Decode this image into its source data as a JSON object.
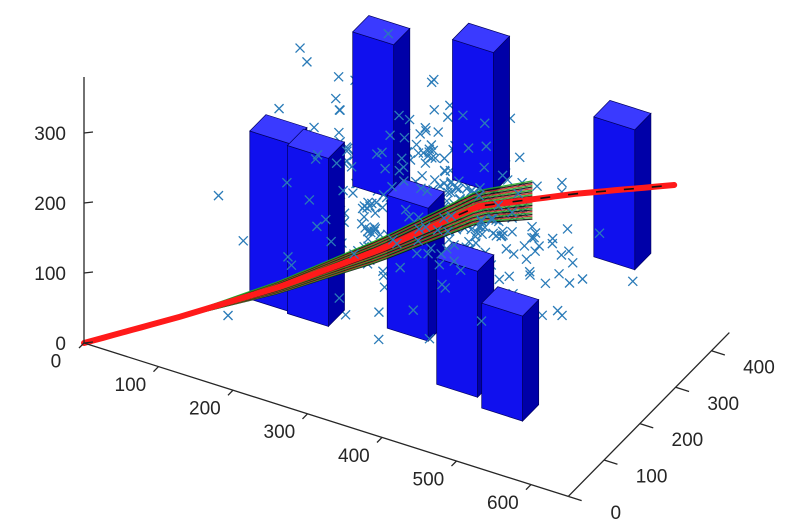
{
  "chart_data": {
    "type": "scatter3d",
    "grid": false,
    "legend": "none",
    "xlabel": "",
    "ylabel": "",
    "zlabel": "",
    "x_ticks": [
      0,
      100,
      200,
      300,
      400,
      500,
      600
    ],
    "y_ticks": [
      0,
      100,
      200,
      300,
      400
    ],
    "z_ticks": [
      0,
      100,
      200,
      300
    ],
    "xlim": [
      0,
      650
    ],
    "ylim": [
      0,
      450
    ],
    "zlim": [
      0,
      380
    ],
    "colors": {
      "bars": "#1010ee",
      "bars_top": "#3a3aff",
      "bars_side": "#0000a8",
      "markers": "#2a7bb8",
      "thick_line": "#ff1a1a",
      "thin_lines": [
        "#111111",
        "#22aa22",
        "#cc2222"
      ],
      "axes": "#262626"
    },
    "bars": [
      {
        "x": 250,
        "y": 310,
        "z0": 150,
        "z1": 370
      },
      {
        "x": 360,
        "y": 360,
        "z0": 170,
        "z1": 370
      },
      {
        "x": 540,
        "y": 380,
        "z0": 110,
        "z1": 310
      },
      {
        "x": 160,
        "y": 210,
        "z0": 10,
        "z1": 250
      },
      {
        "x": 220,
        "y": 190,
        "z0": 20,
        "z1": 260
      },
      {
        "x": 330,
        "y": 240,
        "z0": 10,
        "z1": 200
      },
      {
        "x": 430,
        "y": 170,
        "z0": 0,
        "z1": 180
      },
      {
        "x": 500,
        "y": 150,
        "z0": 0,
        "z1": 150
      }
    ],
    "trajectory": {
      "x": [
        0,
        100,
        200,
        300,
        400,
        500,
        600
      ],
      "y": [
        0,
        60,
        130,
        200,
        270,
        330,
        400
      ],
      "z": [
        0,
        40,
        80,
        130,
        190,
        210,
        220
      ]
    },
    "scatter_count": 500
  }
}
